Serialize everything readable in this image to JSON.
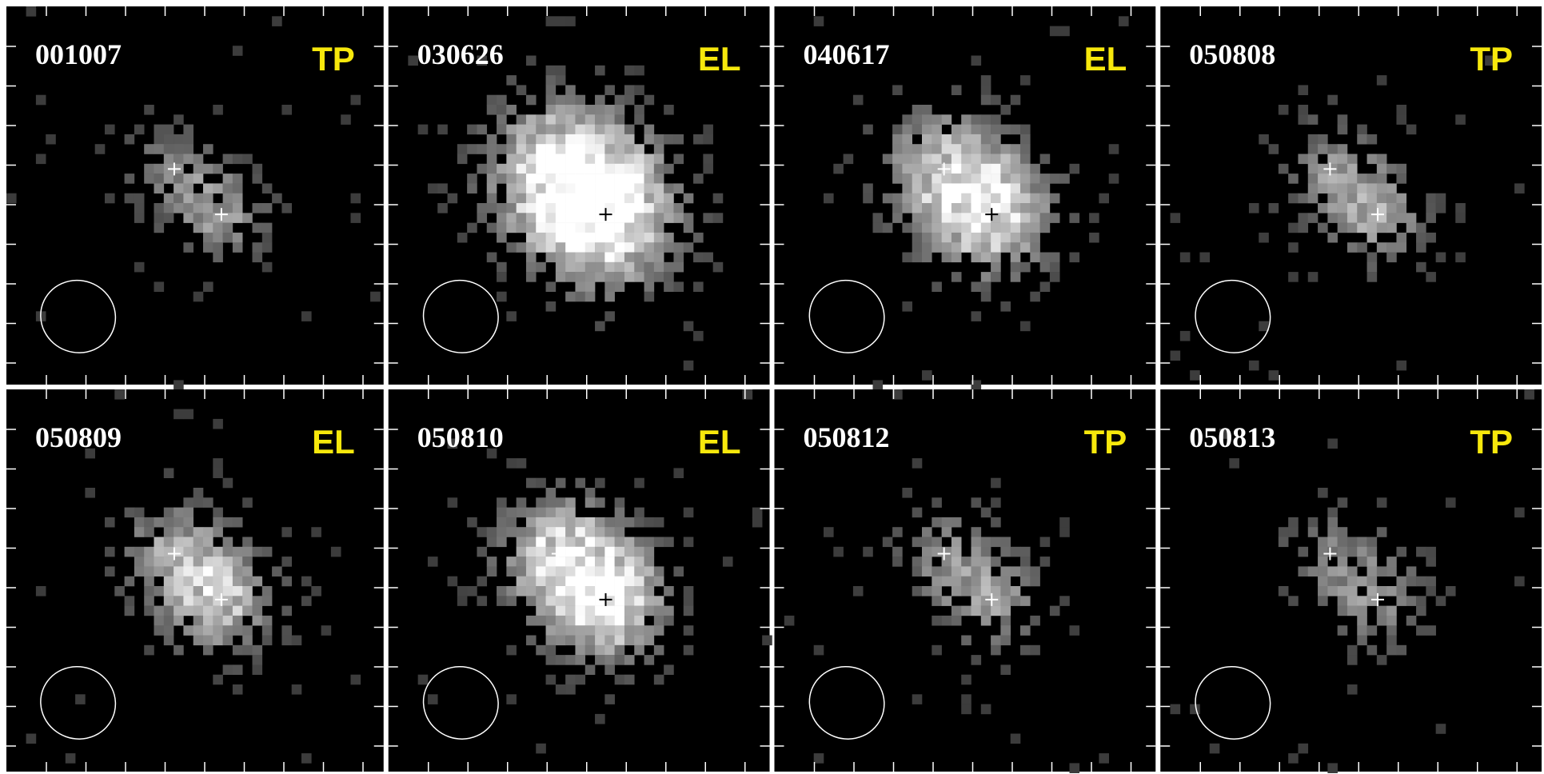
{
  "panels": [
    {
      "id": "001007",
      "label": "TP"
    },
    {
      "id": "030626",
      "label": "EL"
    },
    {
      "id": "040617",
      "label": "EL"
    },
    {
      "id": "050808",
      "label": "TP"
    },
    {
      "id": "050809",
      "label": "EL"
    },
    {
      "id": "050810",
      "label": "EL"
    },
    {
      "id": "050812",
      "label": "TP"
    },
    {
      "id": "050813",
      "label": "TP"
    }
  ]
}
